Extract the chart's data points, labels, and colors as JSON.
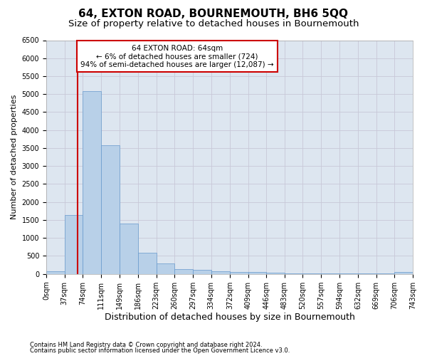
{
  "title": "64, EXTON ROAD, BOURNEMOUTH, BH6 5QQ",
  "subtitle": "Size of property relative to detached houses in Bournemouth",
  "xlabel": "Distribution of detached houses by size in Bournemouth",
  "ylabel": "Number of detached properties",
  "footnote1": "Contains HM Land Registry data © Crown copyright and database right 2024.",
  "footnote2": "Contains public sector information licensed under the Open Government Licence v3.0.",
  "annotation_title": "64 EXTON ROAD: 64sqm",
  "annotation_line1": "← 6% of detached houses are smaller (724)",
  "annotation_line2": "94% of semi-detached houses are larger (12,087) →",
  "bin_edges": [
    0,
    37,
    74,
    111,
    149,
    186,
    223,
    260,
    297,
    334,
    372,
    409,
    446,
    483,
    520,
    557,
    594,
    632,
    669,
    706,
    743
  ],
  "bin_counts": [
    75,
    1640,
    5080,
    3580,
    1410,
    590,
    290,
    140,
    110,
    80,
    60,
    55,
    30,
    20,
    15,
    10,
    8,
    5,
    5,
    60
  ],
  "bar_color": "#b8d0e8",
  "bar_edge_color": "#6699cc",
  "vline_color": "#cc0000",
  "vline_x": 64,
  "annotation_box_facecolor": "#ffffff",
  "annotation_box_edgecolor": "#cc0000",
  "ylim": [
    0,
    6500
  ],
  "yticks": [
    0,
    500,
    1000,
    1500,
    2000,
    2500,
    3000,
    3500,
    4000,
    4500,
    5000,
    5500,
    6000,
    6500
  ],
  "grid_color": "#c8c8d8",
  "axes_bg_color": "#dde6f0",
  "title_fontsize": 11,
  "subtitle_fontsize": 9.5,
  "ylabel_fontsize": 8,
  "xlabel_fontsize": 9,
  "tick_fontsize": 7,
  "annot_fontsize": 7.5,
  "footnote_fontsize": 6
}
